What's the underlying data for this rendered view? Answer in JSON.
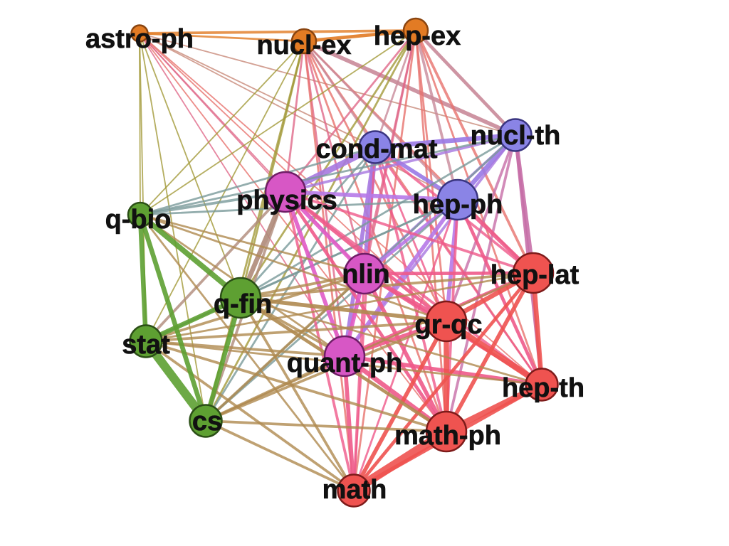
{
  "groups": {
    "orange": {
      "fill": "#e27b24",
      "stroke": "#8a4510"
    },
    "blue": {
      "fill": "#8a84e6",
      "stroke": "#3a3580"
    },
    "magenta": {
      "fill": "#d757c5",
      "stroke": "#6f1e66"
    },
    "red": {
      "fill": "#ef5350",
      "stroke": "#7d1b1a"
    },
    "green": {
      "fill": "#5ea032",
      "stroke": "#2b4f16"
    }
  },
  "nodes": [
    {
      "id": "astro-ph",
      "label": "astro-ph",
      "group": "orange",
      "weight": 1
    },
    {
      "id": "nucl-ex",
      "label": "nucl-ex",
      "group": "orange",
      "weight": 2
    },
    {
      "id": "hep-ex",
      "label": "hep-ex",
      "group": "orange",
      "weight": 2
    },
    {
      "id": "cond-mat",
      "label": "cond-mat",
      "group": "blue",
      "weight": 3
    },
    {
      "id": "nucl-th",
      "label": "nucl-th",
      "group": "blue",
      "weight": 3
    },
    {
      "id": "hep-ph",
      "label": "hep-ph",
      "group": "blue",
      "weight": 4
    },
    {
      "id": "physics",
      "label": "physics",
      "group": "magenta",
      "weight": 4
    },
    {
      "id": "nlin",
      "label": "nlin",
      "group": "magenta",
      "weight": 4
    },
    {
      "id": "quant-ph",
      "label": "quant-ph",
      "group": "magenta",
      "weight": 4
    },
    {
      "id": "hep-lat",
      "label": "hep-lat",
      "group": "red",
      "weight": 4
    },
    {
      "id": "gr-qc",
      "label": "gr-qc",
      "group": "red",
      "weight": 4
    },
    {
      "id": "hep-th",
      "label": "hep-th",
      "group": "red",
      "weight": 3
    },
    {
      "id": "math-ph",
      "label": "math-ph",
      "group": "red",
      "weight": 4
    },
    {
      "id": "math",
      "label": "math",
      "group": "red",
      "weight": 3
    },
    {
      "id": "q-bio",
      "label": "q-bio",
      "group": "green",
      "weight": 2
    },
    {
      "id": "q-fin",
      "label": "q-fin",
      "group": "green",
      "weight": 4
    },
    {
      "id": "stat",
      "label": "stat",
      "group": "green",
      "weight": 3
    },
    {
      "id": "cs",
      "label": "cs",
      "group": "green",
      "weight": 3
    }
  ],
  "edges": [
    {
      "source": "astro-ph",
      "target": "hep-ex",
      "weight": 3,
      "color": "#e27b24"
    },
    {
      "source": "nucl-ex",
      "target": "hep-ex",
      "weight": 4,
      "color": "#e27b24"
    },
    {
      "source": "astro-ph",
      "target": "nucl-ex",
      "weight": 2,
      "color": "#e27b24"
    },
    {
      "source": "astro-ph",
      "target": "q-bio",
      "weight": 1,
      "color": "#a39a3a"
    },
    {
      "source": "astro-ph",
      "target": "stat",
      "weight": 1,
      "color": "#a39a3a"
    },
    {
      "source": "astro-ph",
      "target": "cs",
      "weight": 1,
      "color": "#a39a3a"
    },
    {
      "source": "astro-ph",
      "target": "q-fin",
      "weight": 1,
      "color": "#a39a3a"
    },
    {
      "source": "astro-ph",
      "target": "physics",
      "weight": 1,
      "color": "#e06a8a"
    },
    {
      "source": "astro-ph",
      "target": "nlin",
      "weight": 1,
      "color": "#e06a8a"
    },
    {
      "source": "astro-ph",
      "target": "quant-ph",
      "weight": 1,
      "color": "#e06a8a"
    },
    {
      "source": "astro-ph",
      "target": "gr-qc",
      "weight": 1,
      "color": "#e8726e"
    },
    {
      "source": "astro-ph",
      "target": "hep-ph",
      "weight": 1,
      "color": "#c98a7a"
    },
    {
      "source": "astro-ph",
      "target": "cond-mat",
      "weight": 1,
      "color": "#c98a7a"
    },
    {
      "source": "astro-ph",
      "target": "math-ph",
      "weight": 1,
      "color": "#e8726e"
    },
    {
      "source": "astro-ph",
      "target": "hep-th",
      "weight": 1,
      "color": "#e8726e"
    },
    {
      "source": "astro-ph",
      "target": "nucl-th",
      "weight": 1,
      "color": "#c98a7a"
    },
    {
      "source": "nucl-ex",
      "target": "q-bio",
      "weight": 1,
      "color": "#a39a3a"
    },
    {
      "source": "nucl-ex",
      "target": "cs",
      "weight": 2,
      "color": "#a39a3a"
    },
    {
      "source": "nucl-ex",
      "target": "stat",
      "weight": 1,
      "color": "#a39a3a"
    },
    {
      "source": "nucl-ex",
      "target": "q-fin",
      "weight": 2,
      "color": "#a39a3a"
    },
    {
      "source": "nucl-ex",
      "target": "physics",
      "weight": 2,
      "color": "#e06a8a"
    },
    {
      "source": "nucl-ex",
      "target": "nlin",
      "weight": 2,
      "color": "#e06a8a"
    },
    {
      "source": "nucl-ex",
      "target": "quant-ph",
      "weight": 2,
      "color": "#e06a8a"
    },
    {
      "source": "nucl-ex",
      "target": "gr-qc",
      "weight": 2,
      "color": "#e8726e"
    },
    {
      "source": "nucl-ex",
      "target": "math-ph",
      "weight": 2,
      "color": "#e8726e"
    },
    {
      "source": "nucl-ex",
      "target": "math",
      "weight": 2,
      "color": "#e8726e"
    },
    {
      "source": "nucl-ex",
      "target": "hep-lat",
      "weight": 2,
      "color": "#e8726e"
    },
    {
      "source": "nucl-ex",
      "target": "hep-th",
      "weight": 2,
      "color": "#e8726e"
    },
    {
      "source": "nucl-ex",
      "target": "nucl-th",
      "weight": 5,
      "color": "#c98a9a"
    },
    {
      "source": "nucl-ex",
      "target": "hep-ph",
      "weight": 2,
      "color": "#c98a9a"
    },
    {
      "source": "nucl-ex",
      "target": "cond-mat",
      "weight": 2,
      "color": "#c98a9a"
    },
    {
      "source": "hep-ex",
      "target": "q-bio",
      "weight": 1,
      "color": "#a39a3a"
    },
    {
      "source": "hep-ex",
      "target": "cs",
      "weight": 2,
      "color": "#a39a3a"
    },
    {
      "source": "hep-ex",
      "target": "q-fin",
      "weight": 2,
      "color": "#a39a3a"
    },
    {
      "source": "hep-ex",
      "target": "physics",
      "weight": 2,
      "color": "#e06a8a"
    },
    {
      "source": "hep-ex",
      "target": "nlin",
      "weight": 2,
      "color": "#e06a8a"
    },
    {
      "source": "hep-ex",
      "target": "quant-ph",
      "weight": 2,
      "color": "#e06a8a"
    },
    {
      "source": "hep-ex",
      "target": "gr-qc",
      "weight": 2,
      "color": "#e8726e"
    },
    {
      "source": "hep-ex",
      "target": "hep-lat",
      "weight": 3,
      "color": "#e8726e"
    },
    {
      "source": "hep-ex",
      "target": "hep-th",
      "weight": 2,
      "color": "#e8726e"
    },
    {
      "source": "hep-ex",
      "target": "math-ph",
      "weight": 2,
      "color": "#e8726e"
    },
    {
      "source": "hep-ex",
      "target": "math",
      "weight": 2,
      "color": "#e8726e"
    },
    {
      "source": "hep-ex",
      "target": "nucl-th",
      "weight": 4,
      "color": "#c98a9a"
    },
    {
      "source": "hep-ex",
      "target": "hep-ph",
      "weight": 3,
      "color": "#c98a9a"
    },
    {
      "source": "hep-ex",
      "target": "cond-mat",
      "weight": 2,
      "color": "#c98a9a"
    },
    {
      "source": "cond-mat",
      "target": "nucl-th",
      "weight": 6,
      "color": "#9a7ae6"
    },
    {
      "source": "cond-mat",
      "target": "hep-ph",
      "weight": 5,
      "color": "#9a7ae6"
    },
    {
      "source": "cond-mat",
      "target": "physics",
      "weight": 8,
      "color": "#a778e0"
    },
    {
      "source": "cond-mat",
      "target": "nlin",
      "weight": 6,
      "color": "#a778e0"
    },
    {
      "source": "cond-mat",
      "target": "quant-ph",
      "weight": 5,
      "color": "#a778e0"
    },
    {
      "source": "cond-mat",
      "target": "q-bio",
      "weight": 2,
      "color": "#7a9a9a"
    },
    {
      "source": "cond-mat",
      "target": "q-fin",
      "weight": 2,
      "color": "#7a9a9a"
    },
    {
      "source": "cond-mat",
      "target": "cs",
      "weight": 2,
      "color": "#7a9a9a"
    },
    {
      "source": "cond-mat",
      "target": "gr-qc",
      "weight": 2,
      "color": "#ef5a8a"
    },
    {
      "source": "cond-mat",
      "target": "math-ph",
      "weight": 3,
      "color": "#ef5a8a"
    },
    {
      "source": "cond-mat",
      "target": "hep-lat",
      "weight": 3,
      "color": "#ef5a8a"
    },
    {
      "source": "cond-mat",
      "target": "hep-th",
      "weight": 2,
      "color": "#ef5a8a"
    },
    {
      "source": "cond-mat",
      "target": "math",
      "weight": 2,
      "color": "#ef5a8a"
    },
    {
      "source": "nucl-th",
      "target": "hep-ph",
      "weight": 6,
      "color": "#9a7ae6"
    },
    {
      "source": "nucl-th",
      "target": "hep-lat",
      "weight": 5,
      "color": "#c76fa8"
    },
    {
      "source": "nucl-th",
      "target": "hep-th",
      "weight": 4,
      "color": "#c76fa8"
    },
    {
      "source": "nucl-th",
      "target": "gr-qc",
      "weight": 3,
      "color": "#c76fa8"
    },
    {
      "source": "nucl-th",
      "target": "math-ph",
      "weight": 3,
      "color": "#c76fa8"
    },
    {
      "source": "nucl-th",
      "target": "quant-ph",
      "weight": 3,
      "color": "#a778e0"
    },
    {
      "source": "nucl-th",
      "target": "nlin",
      "weight": 3,
      "color": "#a778e0"
    },
    {
      "source": "nucl-th",
      "target": "physics",
      "weight": 3,
      "color": "#a778e0"
    },
    {
      "source": "nucl-th",
      "target": "q-bio",
      "weight": 2,
      "color": "#7a9a9a"
    },
    {
      "source": "nucl-th",
      "target": "q-fin",
      "weight": 2,
      "color": "#7a9a9a"
    },
    {
      "source": "nucl-th",
      "target": "cs",
      "weight": 2,
      "color": "#7a9a9a"
    },
    {
      "source": "hep-ph",
      "target": "hep-lat",
      "weight": 5,
      "color": "#ef5a8a"
    },
    {
      "source": "hep-ph",
      "target": "hep-th",
      "weight": 4,
      "color": "#ef5a8a"
    },
    {
      "source": "hep-ph",
      "target": "gr-qc",
      "weight": 5,
      "color": "#b67ae8"
    },
    {
      "source": "hep-ph",
      "target": "math-ph",
      "weight": 3,
      "color": "#ef5a8a"
    },
    {
      "source": "hep-ph",
      "target": "math",
      "weight": 2,
      "color": "#ef5a8a"
    },
    {
      "source": "hep-ph",
      "target": "quant-ph",
      "weight": 5,
      "color": "#b67ae8"
    },
    {
      "source": "hep-ph",
      "target": "nlin",
      "weight": 4,
      "color": "#b67ae8"
    },
    {
      "source": "hep-ph",
      "target": "physics",
      "weight": 5,
      "color": "#b67ae8"
    },
    {
      "source": "hep-ph",
      "target": "q-bio",
      "weight": 2,
      "color": "#7a9a9a"
    },
    {
      "source": "hep-ph",
      "target": "q-fin",
      "weight": 2,
      "color": "#7a9a9a"
    },
    {
      "source": "hep-ph",
      "target": "stat",
      "weight": 2,
      "color": "#7a9a9a"
    },
    {
      "source": "hep-ph",
      "target": "cs",
      "weight": 2,
      "color": "#7a9a9a"
    },
    {
      "source": "physics",
      "target": "nlin",
      "weight": 5,
      "color": "#e05cc8"
    },
    {
      "source": "physics",
      "target": "quant-ph",
      "weight": 5,
      "color": "#e05cc8"
    },
    {
      "source": "physics",
      "target": "math-ph",
      "weight": 4,
      "color": "#ef5a8a"
    },
    {
      "source": "physics",
      "target": "gr-qc",
      "weight": 4,
      "color": "#ef5a8a"
    },
    {
      "source": "physics",
      "target": "math",
      "weight": 3,
      "color": "#ef5a8a"
    },
    {
      "source": "physics",
      "target": "hep-lat",
      "weight": 3,
      "color": "#ef5a8a"
    },
    {
      "source": "physics",
      "target": "hep-th",
      "weight": 3,
      "color": "#ef5a8a"
    },
    {
      "source": "physics",
      "target": "q-bio",
      "weight": 3,
      "color": "#7a9a9a"
    },
    {
      "source": "physics",
      "target": "q-fin",
      "weight": 6,
      "color": "#b08a7a"
    },
    {
      "source": "physics",
      "target": "stat",
      "weight": 3,
      "color": "#b08a7a"
    },
    {
      "source": "physics",
      "target": "cs",
      "weight": 3,
      "color": "#b08a7a"
    },
    {
      "source": "nlin",
      "target": "quant-ph",
      "weight": 5,
      "color": "#e05cc8"
    },
    {
      "source": "nlin",
      "target": "gr-qc",
      "weight": 5,
      "color": "#ef5a8a"
    },
    {
      "source": "nlin",
      "target": "math-ph",
      "weight": 5,
      "color": "#ef5a8a"
    },
    {
      "source": "nlin",
      "target": "math",
      "weight": 3,
      "color": "#ef5a8a"
    },
    {
      "source": "nlin",
      "target": "hep-lat",
      "weight": 4,
      "color": "#ef5a8a"
    },
    {
      "source": "nlin",
      "target": "hep-th",
      "weight": 4,
      "color": "#ef5a8a"
    },
    {
      "source": "nlin",
      "target": "q-fin",
      "weight": 3,
      "color": "#b08a50"
    },
    {
      "source": "nlin",
      "target": "q-bio",
      "weight": 2,
      "color": "#b08a50"
    },
    {
      "source": "nlin",
      "target": "stat",
      "weight": 3,
      "color": "#b08a50"
    },
    {
      "source": "nlin",
      "target": "cs",
      "weight": 3,
      "color": "#b08a50"
    },
    {
      "source": "quant-ph",
      "target": "gr-qc",
      "weight": 5,
      "color": "#ef5a8a"
    },
    {
      "source": "quant-ph",
      "target": "math-ph",
      "weight": 6,
      "color": "#ef5a8a"
    },
    {
      "source": "quant-ph",
      "target": "math",
      "weight": 5,
      "color": "#ef5a8a"
    },
    {
      "source": "quant-ph",
      "target": "hep-lat",
      "weight": 4,
      "color": "#ef5a8a"
    },
    {
      "source": "quant-ph",
      "target": "hep-th",
      "weight": 5,
      "color": "#ef5a8a"
    },
    {
      "source": "quant-ph",
      "target": "q-fin",
      "weight": 3,
      "color": "#b08a50"
    },
    {
      "source": "quant-ph",
      "target": "q-bio",
      "weight": 2,
      "color": "#b08a50"
    },
    {
      "source": "quant-ph",
      "target": "stat",
      "weight": 3,
      "color": "#b08a50"
    },
    {
      "source": "quant-ph",
      "target": "cs",
      "weight": 3,
      "color": "#b08a50"
    },
    {
      "source": "hep-lat",
      "target": "gr-qc",
      "weight": 6,
      "color": "#ef5350"
    },
    {
      "source": "hep-lat",
      "target": "hep-th",
      "weight": 6,
      "color": "#ef5350"
    },
    {
      "source": "hep-lat",
      "target": "math-ph",
      "weight": 5,
      "color": "#ef5350"
    },
    {
      "source": "hep-lat",
      "target": "math",
      "weight": 4,
      "color": "#ef5350"
    },
    {
      "source": "hep-lat",
      "target": "q-fin",
      "weight": 3,
      "color": "#b08a50"
    },
    {
      "source": "hep-lat",
      "target": "stat",
      "weight": 2,
      "color": "#b08a50"
    },
    {
      "source": "hep-lat",
      "target": "cs",
      "weight": 2,
      "color": "#b08a50"
    },
    {
      "source": "gr-qc",
      "target": "hep-th",
      "weight": 8,
      "color": "#ef5350"
    },
    {
      "source": "gr-qc",
      "target": "math-ph",
      "weight": 7,
      "color": "#ef5350"
    },
    {
      "source": "gr-qc",
      "target": "math",
      "weight": 5,
      "color": "#ef5350"
    },
    {
      "source": "gr-qc",
      "target": "q-fin",
      "weight": 5,
      "color": "#b08a50"
    },
    {
      "source": "gr-qc",
      "target": "stat",
      "weight": 3,
      "color": "#b08a50"
    },
    {
      "source": "gr-qc",
      "target": "cs",
      "weight": 3,
      "color": "#b08a50"
    },
    {
      "source": "gr-qc",
      "target": "q-bio",
      "weight": 2,
      "color": "#b08a50"
    },
    {
      "source": "hep-th",
      "target": "math-ph",
      "weight": 8,
      "color": "#ef5350"
    },
    {
      "source": "hep-th",
      "target": "math",
      "weight": 5,
      "color": "#ef5350"
    },
    {
      "source": "hep-th",
      "target": "q-fin",
      "weight": 2,
      "color": "#b08a50"
    },
    {
      "source": "hep-th",
      "target": "stat",
      "weight": 2,
      "color": "#b08a50"
    },
    {
      "source": "math-ph",
      "target": "math",
      "weight": 12,
      "color": "#ef5350"
    },
    {
      "source": "math-ph",
      "target": "q-fin",
      "weight": 4,
      "color": "#b08a50"
    },
    {
      "source": "math-ph",
      "target": "stat",
      "weight": 3,
      "color": "#b08a50"
    },
    {
      "source": "math-ph",
      "target": "cs",
      "weight": 3,
      "color": "#b08a50"
    },
    {
      "source": "math",
      "target": "q-fin",
      "weight": 3,
      "color": "#b08a50"
    },
    {
      "source": "math",
      "target": "stat",
      "weight": 3,
      "color": "#b08a50"
    },
    {
      "source": "math",
      "target": "cs",
      "weight": 3,
      "color": "#b08a50"
    },
    {
      "source": "math",
      "target": "q-bio",
      "weight": 2,
      "color": "#b08a50"
    },
    {
      "source": "q-bio",
      "target": "stat",
      "weight": 6,
      "color": "#5ea032"
    },
    {
      "source": "q-bio",
      "target": "cs",
      "weight": 6,
      "color": "#5ea032"
    },
    {
      "source": "q-bio",
      "target": "q-fin",
      "weight": 7,
      "color": "#5ea032"
    },
    {
      "source": "q-fin",
      "target": "stat",
      "weight": 6,
      "color": "#5ea032"
    },
    {
      "source": "q-fin",
      "target": "cs",
      "weight": 6,
      "color": "#5ea032"
    },
    {
      "source": "stat",
      "target": "cs",
      "weight": 12,
      "color": "#5ea032"
    }
  ]
}
